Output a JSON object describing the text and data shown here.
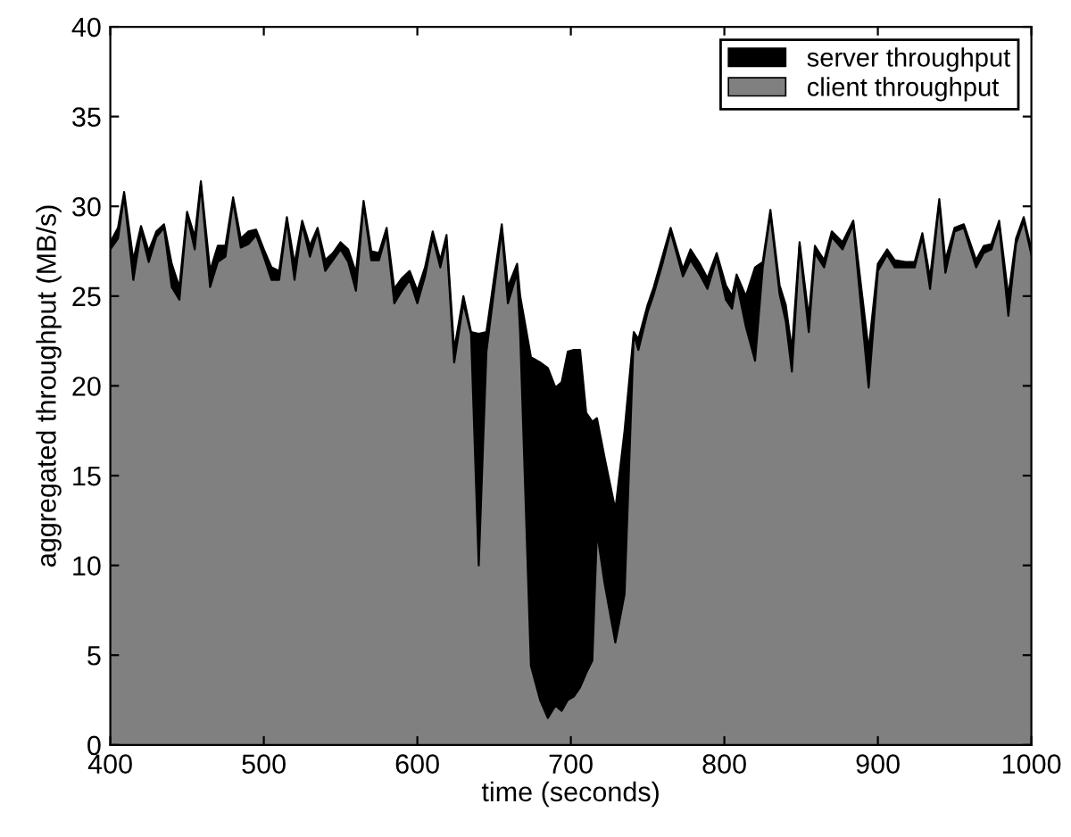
{
  "chart_data": {
    "type": "area",
    "xlabel": "time (seconds)",
    "ylabel": "aggregated throughput (MB/s)",
    "x": [
      400,
      405,
      409,
      415,
      420,
      425,
      430,
      435,
      440,
      445,
      450,
      455,
      459,
      465,
      470,
      475,
      480,
      485,
      490,
      495,
      500,
      505,
      510,
      515,
      520,
      525,
      530,
      535,
      540,
      545,
      550,
      555,
      560,
      565,
      570,
      575,
      580,
      585,
      590,
      595,
      600,
      605,
      610,
      615,
      619,
      624,
      630,
      635,
      640,
      645,
      655,
      659,
      665,
      667,
      674,
      680,
      685,
      690,
      694,
      698,
      702,
      706,
      710,
      714,
      717,
      722,
      729,
      735,
      741,
      744,
      750,
      754,
      760,
      765,
      773,
      778,
      784,
      789,
      795,
      801,
      805,
      808,
      814,
      820,
      825,
      830,
      836,
      840,
      844,
      849,
      855,
      859,
      865,
      870,
      877,
      884,
      894,
      900,
      906,
      911,
      918,
      924,
      929,
      934,
      940,
      944,
      950,
      956,
      964,
      969,
      974,
      979,
      985,
      990,
      995,
      1000
    ],
    "series": [
      {
        "name": "server throughput",
        "color": "#000000",
        "values": [
          28.0,
          28.8,
          30.8,
          27.0,
          28.9,
          27.5,
          28.6,
          29.0,
          26.8,
          25.5,
          29.7,
          28.3,
          31.4,
          26.4,
          27.8,
          27.8,
          30.5,
          28.2,
          28.6,
          28.7,
          27.6,
          26.6,
          26.4,
          29.4,
          26.8,
          29.2,
          27.8,
          28.8,
          27.0,
          27.4,
          28.0,
          27.6,
          26.3,
          30.3,
          27.5,
          27.4,
          28.8,
          25.4,
          26.0,
          26.4,
          25.3,
          26.6,
          28.6,
          27.0,
          28.4,
          22.0,
          25.0,
          23.0,
          22.9,
          23.0,
          29.0,
          25.5,
          26.8,
          25.0,
          21.6,
          21.3,
          21.0,
          19.9,
          20.2,
          21.9,
          22.0,
          22.0,
          18.5,
          18.0,
          18.2,
          16.0,
          13.1,
          17.5,
          23.0,
          22.6,
          24.5,
          25.5,
          27.3,
          28.8,
          26.5,
          27.6,
          26.8,
          26.0,
          27.4,
          25.6,
          25.0,
          26.2,
          25.0,
          26.6,
          26.9,
          29.8,
          25.6,
          24.5,
          22.0,
          28.0,
          23.8,
          27.8,
          27.0,
          28.6,
          28.0,
          29.2,
          22.0,
          26.8,
          27.6,
          27.0,
          26.9,
          26.9,
          28.5,
          26.0,
          30.4,
          27.0,
          28.8,
          29.0,
          27.0,
          27.8,
          27.9,
          29.2,
          25.0,
          28.2,
          29.4,
          27.6
        ]
      },
      {
        "name": "client throughput",
        "color": "#808080",
        "values": [
          27.6,
          28.2,
          30.6,
          25.9,
          28.6,
          26.9,
          28.3,
          28.8,
          25.5,
          24.8,
          29.5,
          27.6,
          31.2,
          25.5,
          26.9,
          27.2,
          30.3,
          27.7,
          27.9,
          28.4,
          27.2,
          25.9,
          25.9,
          29.2,
          25.9,
          29.0,
          27.2,
          28.6,
          26.4,
          27.0,
          27.6,
          26.9,
          25.3,
          30.1,
          27.0,
          27.0,
          28.5,
          24.6,
          25.3,
          25.9,
          24.6,
          26.1,
          28.3,
          26.6,
          28.1,
          21.3,
          24.6,
          22.9,
          10.0,
          21.9,
          28.7,
          24.6,
          26.3,
          22.9,
          4.4,
          2.5,
          1.5,
          2.2,
          1.9,
          2.5,
          2.7,
          3.2,
          4.0,
          4.7,
          11.9,
          9.0,
          5.7,
          8.4,
          22.9,
          22.0,
          24.1,
          25.1,
          26.9,
          28.6,
          26.1,
          27.0,
          26.2,
          25.4,
          27.1,
          24.8,
          24.3,
          25.8,
          23.3,
          21.4,
          26.6,
          29.6,
          25.1,
          23.6,
          20.8,
          27.8,
          23.0,
          27.4,
          26.6,
          28.3,
          27.6,
          29.0,
          19.9,
          26.4,
          27.3,
          26.6,
          26.6,
          26.6,
          28.3,
          25.4,
          30.2,
          26.3,
          28.6,
          28.8,
          26.6,
          27.4,
          27.6,
          29.0,
          23.9,
          27.9,
          29.2,
          27.3
        ]
      }
    ],
    "xlim": [
      400,
      1000
    ],
    "xticks": [
      400,
      500,
      600,
      700,
      800,
      900,
      1000
    ],
    "ylim": [
      0,
      40
    ],
    "yticks": [
      0,
      5,
      10,
      15,
      20,
      25,
      30,
      35,
      40
    ],
    "legend": "top right",
    "grid": false
  }
}
